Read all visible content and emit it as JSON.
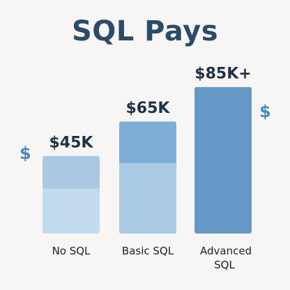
{
  "title": "SQL Pays",
  "decorations": {
    "left_symbol": "$",
    "right_symbol": "$",
    "symbol_color": "#4a8bc0"
  },
  "chart_data": {
    "type": "bar",
    "categories": [
      "No SQL",
      "Basic SQL",
      "Advanced SQL"
    ],
    "values": [
      45,
      65,
      85
    ],
    "labels": [
      "$45K",
      "$65K",
      "$85K+"
    ],
    "ylim": [
      0,
      95
    ],
    "colors": {
      "bars": [
        {
          "top": "#aac8e2",
          "bottom": "#c2dcee"
        },
        {
          "top": "#7eaed6",
          "bottom": "#abcae3"
        },
        {
          "top": "#6699c6",
          "bottom": "#6699c6"
        }
      ],
      "value_label": "#1f3148",
      "category_label": "#1f1f1f"
    }
  }
}
